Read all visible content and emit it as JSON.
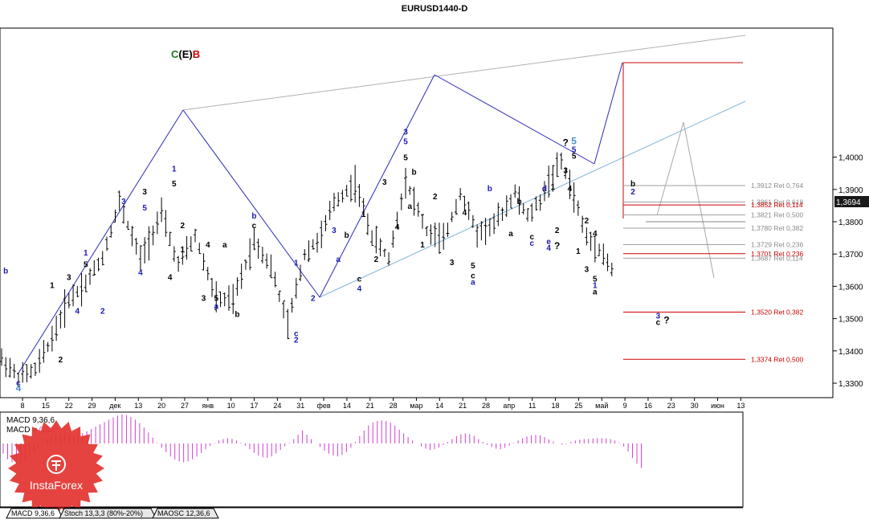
{
  "window": {
    "title": "EURUSD1440-D"
  },
  "pattern_label": {
    "c": "C",
    "e": "(E)",
    "b": "B"
  },
  "current_price": "1,3694",
  "watermark": "InstaForex",
  "macd_header": {
    "line1": "MACD 9,36,6",
    "line2_prefix": "MACD = ",
    "line2_value": "0,00"
  },
  "tabs": [
    "MACD 9,36,6",
    "Stoch 13,3,3 (80%-20%)",
    "MAOSC 12,36,6"
  ],
  "colors": {
    "red": "#cc0000",
    "blue": "#1a1ab0",
    "cyan": "#4f8fc8",
    "grey": "#9a9a9a",
    "magenta": "#d040d0",
    "green": "#1a7a1a"
  },
  "chart_data": {
    "type": "candlestick-bars",
    "symbol": "EURUSD",
    "timeframe": "D",
    "y_ticks": [
      "1,3300",
      "1,3400",
      "1,3500",
      "1,3600",
      "1,3700",
      "1,3800",
      "1,3900",
      "1,4000"
    ],
    "y_range": [
      1.325,
      1.407
    ],
    "x_ticks": [
      "8",
      "15",
      "22",
      "29",
      "дек",
      "13",
      "20",
      "27",
      "янв",
      "10",
      "17",
      "24",
      "31",
      "фев",
      "14",
      "21",
      "28",
      "мар",
      "14",
      "21",
      "28",
      "апр",
      "11",
      "18",
      "25",
      "май",
      "9",
      "16",
      "23",
      "30",
      "июн",
      "13"
    ],
    "fib_levels": [
      {
        "label": "1,3912 Ret 0,764",
        "value": 1.3912,
        "color": "grey"
      },
      {
        "label": "1,3861 Ret 0,618",
        "value": 1.3861,
        "color": "grey"
      },
      {
        "label": "1,3852 Ret 0,114",
        "value": 1.3852,
        "color": "red"
      },
      {
        "label": "1,3821 Ret 0,500",
        "value": 1.3821,
        "color": "grey"
      },
      {
        "label": "1,3780 Ret 0,382",
        "value": 1.378,
        "color": "grey"
      },
      {
        "label": "1,3729 Ret 0,236",
        "value": 1.3729,
        "color": "grey"
      },
      {
        "label": "1,3701 Ret 0,236",
        "value": 1.3701,
        "color": "red"
      },
      {
        "label": "1,3687 Ret 0,114",
        "value": 1.3687,
        "color": "grey"
      },
      {
        "label": "1,3520 Ret 0,382",
        "value": 1.352,
        "color": "red"
      },
      {
        "label": "1,3374 Ret 0,500",
        "value": 1.3374,
        "color": "red"
      }
    ],
    "wave_path": [
      [
        0,
        1.3375
      ],
      [
        4,
        1.3318
      ],
      [
        8,
        1.334
      ],
      [
        12,
        1.344
      ],
      [
        16,
        1.356
      ],
      [
        20,
        1.361
      ],
      [
        24,
        1.369
      ],
      [
        28,
        1.386
      ],
      [
        33,
        1.3685
      ],
      [
        38,
        1.3825
      ],
      [
        42,
        1.3665
      ],
      [
        46,
        1.3755
      ],
      [
        51,
        1.356
      ],
      [
        55,
        1.3555
      ],
      [
        60,
        1.3745
      ],
      [
        64,
        1.366
      ],
      [
        68,
        1.348
      ],
      [
        72,
        1.37
      ],
      [
        76,
        1.3755
      ],
      [
        79,
        1.386
      ],
      [
        84,
        1.392
      ],
      [
        88,
        1.3755
      ],
      [
        92,
        1.3685
      ],
      [
        96,
        1.393
      ],
      [
        101,
        1.377
      ],
      [
        105,
        1.374
      ],
      [
        109,
        1.389
      ],
      [
        113,
        1.3765
      ],
      [
        117,
        1.379
      ],
      [
        122,
        1.389
      ],
      [
        125,
        1.3815
      ],
      [
        128,
        1.3865
      ],
      [
        130,
        1.3925
      ],
      [
        133,
        1.3985
      ],
      [
        136,
        1.388
      ],
      [
        139,
        1.375
      ],
      [
        142,
        1.372
      ],
      [
        145,
        1.365
      ],
      [
        146,
        1.369
      ]
    ],
    "wave_labels": [
      {
        "text": "b",
        "bar": 1,
        "price": 1.3635,
        "color": "blue",
        "pos": "above"
      },
      {
        "text": "c",
        "bar": 4,
        "price": 1.3318,
        "color": "blue",
        "pos": "below"
      },
      {
        "text": "4",
        "bar": 4,
        "price": 1.33,
        "color": "cyan",
        "pos": "below"
      },
      {
        "text": "1",
        "bar": 12,
        "price": 1.359,
        "color": "black",
        "pos": "above"
      },
      {
        "text": "2",
        "bar": 14,
        "price": 1.339,
        "color": "black",
        "pos": "below"
      },
      {
        "text": "3",
        "bar": 16,
        "price": 1.3615,
        "color": "black",
        "pos": "above"
      },
      {
        "text": "4",
        "bar": 18,
        "price": 1.354,
        "color": "blue",
        "pos": "below"
      },
      {
        "text": "5",
        "bar": 20,
        "price": 1.3655,
        "color": "black",
        "pos": "above"
      },
      {
        "text": "1",
        "bar": 20,
        "price": 1.369,
        "color": "blue",
        "pos": "above"
      },
      {
        "text": "2",
        "bar": 24,
        "price": 1.354,
        "color": "blue",
        "pos": "below"
      },
      {
        "text": "3",
        "bar": 29,
        "price": 1.385,
        "color": "blue",
        "pos": "above"
      },
      {
        "text": "5",
        "bar": 34,
        "price": 1.383,
        "color": "blue",
        "pos": "above"
      },
      {
        "text": "3",
        "bar": 34,
        "price": 1.388,
        "color": "black",
        "pos": "above"
      },
      {
        "text": "4",
        "bar": 33,
        "price": 1.366,
        "color": "blue",
        "pos": "below"
      },
      {
        "text": "4",
        "bar": 40,
        "price": 1.3645,
        "color": "black",
        "pos": "below"
      },
      {
        "text": "1",
        "bar": 41,
        "price": 1.395,
        "color": "blue",
        "pos": "above"
      },
      {
        "text": "5",
        "bar": 41,
        "price": 1.3905,
        "color": "black",
        "pos": "above"
      },
      {
        "text": "2",
        "bar": 43,
        "price": 1.3775,
        "color": "black",
        "pos": "above"
      },
      {
        "text": "1",
        "bar": 43,
        "price": 1.373,
        "color": "black",
        "pos": "below"
      },
      {
        "text": "4",
        "bar": 49,
        "price": 1.3745,
        "color": "black",
        "pos": "below"
      },
      {
        "text": "3",
        "bar": 48,
        "price": 1.358,
        "color": "black",
        "pos": "below"
      },
      {
        "text": "5",
        "bar": 51,
        "price": 1.358,
        "color": "black",
        "pos": "below"
      },
      {
        "text": "a",
        "bar": 51,
        "price": 1.3555,
        "color": "blue",
        "pos": "below"
      },
      {
        "text": "b",
        "bar": 60,
        "price": 1.3805,
        "color": "blue",
        "pos": "above"
      },
      {
        "text": "c",
        "bar": 60,
        "price": 1.3775,
        "color": "black",
        "pos": "above"
      },
      {
        "text": "a",
        "bar": 53,
        "price": 1.3715,
        "color": "black",
        "pos": "above"
      },
      {
        "text": "b",
        "bar": 56,
        "price": 1.353,
        "color": "black",
        "pos": "below"
      },
      {
        "text": "c",
        "bar": 70,
        "price": 1.347,
        "color": "blue",
        "pos": "below"
      },
      {
        "text": "2",
        "bar": 70,
        "price": 1.345,
        "color": "blue",
        "pos": "below"
      },
      {
        "text": "1",
        "bar": 70,
        "price": 1.366,
        "color": "blue",
        "pos": "above"
      },
      {
        "text": "2",
        "bar": 74,
        "price": 1.358,
        "color": "blue",
        "pos": "below"
      },
      {
        "text": "3",
        "bar": 79,
        "price": 1.376,
        "color": "blue",
        "pos": "above"
      },
      {
        "text": "a",
        "bar": 80,
        "price": 1.37,
        "color": "blue",
        "pos": "below"
      },
      {
        "text": "b",
        "bar": 82,
        "price": 1.3745,
        "color": "black",
        "pos": "above"
      },
      {
        "text": "1",
        "bar": 86,
        "price": 1.381,
        "color": "black",
        "pos": "above"
      },
      {
        "text": "c",
        "bar": 85,
        "price": 1.364,
        "color": "black",
        "pos": "below"
      },
      {
        "text": "4",
        "bar": 85,
        "price": 1.361,
        "color": "blue",
        "pos": "below"
      },
      {
        "text": "2",
        "bar": 89,
        "price": 1.37,
        "color": "black",
        "pos": "below"
      },
      {
        "text": "3",
        "bar": 91,
        "price": 1.391,
        "color": "black",
        "pos": "above"
      },
      {
        "text": "4",
        "bar": 94,
        "price": 1.38,
        "color": "black",
        "pos": "below"
      },
      {
        "text": "a",
        "bar": 97,
        "price": 1.3865,
        "color": "black",
        "pos": "below"
      },
      {
        "text": "3",
        "bar": 96,
        "price": 1.4065,
        "color": "blue",
        "pos": "above"
      },
      {
        "text": "5",
        "bar": 96,
        "price": 1.4035,
        "color": "blue",
        "pos": "above"
      },
      {
        "text": "5",
        "bar": 96,
        "price": 1.3985,
        "color": "black",
        "pos": "above"
      },
      {
        "text": "b",
        "bar": 98,
        "price": 1.394,
        "color": "black",
        "pos": "above"
      },
      {
        "text": "1",
        "bar": 100,
        "price": 1.3745,
        "color": "black",
        "pos": "below"
      },
      {
        "text": "2",
        "bar": 103,
        "price": 1.3865,
        "color": "black",
        "pos": "above"
      },
      {
        "text": "3",
        "bar": 107,
        "price": 1.369,
        "color": "black",
        "pos": "below"
      },
      {
        "text": "4",
        "bar": 110,
        "price": 1.3815,
        "color": "black",
        "pos": "above"
      },
      {
        "text": "5",
        "bar": 112,
        "price": 1.368,
        "color": "black",
        "pos": "below"
      },
      {
        "text": "c",
        "bar": 112,
        "price": 1.365,
        "color": "black",
        "pos": "below"
      },
      {
        "text": "a",
        "bar": 112,
        "price": 1.363,
        "color": "blue",
        "pos": "below"
      },
      {
        "text": "b",
        "bar": 116,
        "price": 1.389,
        "color": "blue",
        "pos": "above"
      },
      {
        "text": "b",
        "bar": 123,
        "price": 1.385,
        "color": "black",
        "pos": "above"
      },
      {
        "text": "a",
        "bar": 121,
        "price": 1.378,
        "color": "black",
        "pos": "below"
      },
      {
        "text": "c",
        "bar": 126,
        "price": 1.377,
        "color": "black",
        "pos": "below"
      },
      {
        "text": "c",
        "bar": 126,
        "price": 1.375,
        "color": "blue",
        "pos": "below"
      },
      {
        "text": "d",
        "bar": 129,
        "price": 1.389,
        "color": "blue",
        "pos": "above"
      },
      {
        "text": "1",
        "bar": 131,
        "price": 1.3895,
        "color": "black",
        "pos": "above"
      },
      {
        "text": "e",
        "bar": 130,
        "price": 1.3755,
        "color": "blue",
        "pos": "below"
      },
      {
        "text": "4",
        "bar": 130,
        "price": 1.3735,
        "color": "blue",
        "pos": "below"
      },
      {
        "text": "?",
        "bar": 132,
        "price": 1.374,
        "color": "black",
        "pos": "below"
      },
      {
        "text": "2",
        "bar": 132,
        "price": 1.379,
        "color": "black",
        "pos": "below"
      },
      {
        "text": "3",
        "bar": 134,
        "price": 1.3945,
        "color": "black",
        "pos": "above"
      },
      {
        "text": "4",
        "bar": 135,
        "price": 1.389,
        "color": "black",
        "pos": "above"
      },
      {
        "text": "?",
        "bar": 134,
        "price": 1.403,
        "color": "black",
        "pos": "above"
      },
      {
        "text": "5",
        "bar": 136,
        "price": 1.4035,
        "color": "cyan",
        "pos": "above"
      },
      {
        "text": "5",
        "bar": 136,
        "price": 1.401,
        "color": "blue",
        "pos": "above"
      },
      {
        "text": "5",
        "bar": 136,
        "price": 1.399,
        "color": "black",
        "pos": "above"
      },
      {
        "text": "2",
        "bar": 139,
        "price": 1.379,
        "color": "black",
        "pos": "above"
      },
      {
        "text": "1",
        "bar": 137,
        "price": 1.3725,
        "color": "black",
        "pos": "below"
      },
      {
        "text": "4",
        "bar": 141,
        "price": 1.375,
        "color": "black",
        "pos": "above"
      },
      {
        "text": "3",
        "bar": 139,
        "price": 1.367,
        "color": "black",
        "pos": "below"
      },
      {
        "text": "5",
        "bar": 141,
        "price": 1.364,
        "color": "black",
        "pos": "below"
      },
      {
        "text": "1",
        "bar": 141,
        "price": 1.362,
        "color": "blue",
        "pos": "below"
      },
      {
        "text": "a",
        "bar": 141,
        "price": 1.36,
        "color": "black",
        "pos": "below"
      },
      {
        "text": "b",
        "bar": 150,
        "price": 1.3905,
        "color": "black",
        "pos": "above"
      },
      {
        "text": "2",
        "bar": 150,
        "price": 1.388,
        "color": "blue",
        "pos": "above"
      },
      {
        "text": "3",
        "bar": 156,
        "price": 1.3495,
        "color": "blue",
        "pos": "above"
      },
      {
        "text": "c",
        "bar": 156,
        "price": 1.3475,
        "color": "black",
        "pos": "above"
      },
      {
        "text": "?",
        "bar": 158,
        "price": 1.348,
        "color": "black",
        "pos": "above"
      }
    ],
    "macd_values": [
      -0.35,
      -0.55,
      -0.65,
      -0.75,
      -0.7,
      -0.6,
      -0.45,
      -0.3,
      -0.15,
      0.05,
      0.15,
      0.25,
      0.3,
      0.32,
      0.33,
      0.3,
      0.25,
      0.28,
      0.35,
      0.42,
      0.5,
      0.58,
      0.66,
      0.74,
      0.82,
      0.9,
      0.96,
      1.0,
      0.98,
      0.92,
      0.82,
      0.7,
      0.55,
      0.38,
      0.2,
      0.02,
      -0.15,
      -0.3,
      -0.45,
      -0.55,
      -0.62,
      -0.65,
      -0.62,
      -0.55,
      -0.45,
      -0.33,
      -0.2,
      -0.08,
      0.02,
      0.1,
      0.15,
      0.18,
      0.16,
      0.1,
      0.02,
      -0.08,
      -0.2,
      -0.32,
      -0.42,
      -0.48,
      -0.5,
      -0.45,
      -0.35,
      -0.22,
      -0.1,
      0.02,
      0.15,
      0.3,
      0.45,
      0.3,
      0.15,
      0.0,
      -0.12,
      -0.25,
      -0.35,
      -0.42,
      -0.45,
      -0.4,
      -0.3,
      -0.15,
      0.05,
      0.25,
      0.45,
      0.62,
      0.72,
      0.78,
      0.8,
      0.78,
      0.72,
      0.62,
      0.48,
      0.35,
      0.22,
      0.1,
      0.0,
      -0.1,
      -0.18,
      -0.22,
      -0.2,
      -0.14,
      -0.05,
      0.05,
      0.15,
      0.25,
      0.32,
      0.35,
      0.33,
      0.26,
      0.15,
      0.05,
      -0.05,
      -0.12,
      -0.18,
      -0.2,
      -0.15,
      -0.08,
      0.02,
      0.1,
      0.18,
      0.24,
      0.28,
      0.3,
      0.28,
      0.22,
      0.14,
      0.06,
      0.0,
      -0.04,
      -0.02,
      0.05,
      0.1,
      0.13,
      0.15,
      0.16,
      0.17,
      0.18,
      0.18,
      0.17,
      0.15,
      0.1,
      0.02,
      -0.1,
      -0.28,
      -0.5,
      -0.7,
      -0.85
    ]
  }
}
